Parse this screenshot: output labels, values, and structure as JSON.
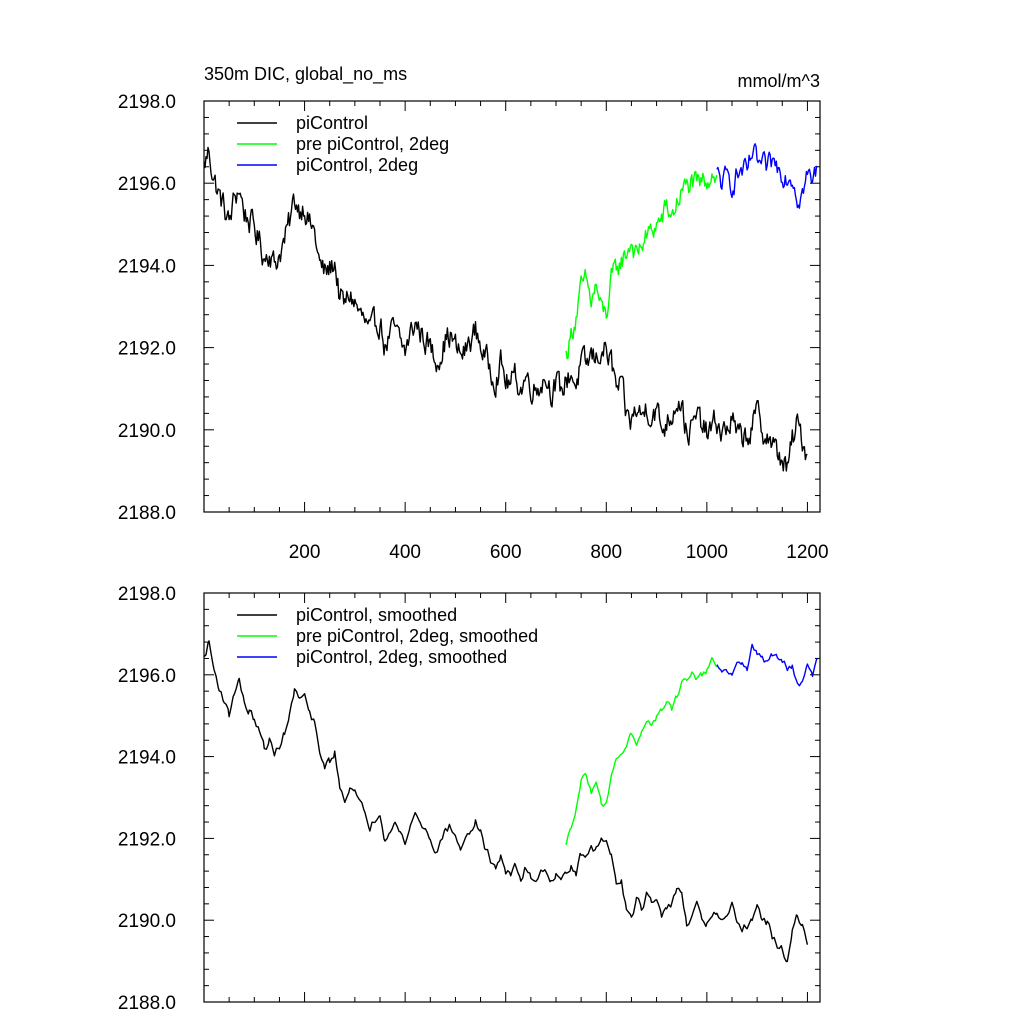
{
  "page": {
    "title_left": "350m DIC, global_no_ms",
    "title_right": "mmol/m^3"
  },
  "chart_data": [
    {
      "type": "line",
      "title": "350m DIC, global_no_ms",
      "units_label": "mmol/m^3",
      "xlim": [
        0,
        1225
      ],
      "ylim": [
        2188.0,
        2198.0
      ],
      "x_ticks": [
        200,
        400,
        600,
        800,
        1000,
        1200
      ],
      "y_ticks": [
        "2188.0",
        "2190.0",
        "2192.0",
        "2194.0",
        "2196.0",
        "2198.0"
      ],
      "legend_position": "top-left",
      "grid": false,
      "series": [
        {
          "name": "piControl",
          "color": "#000000",
          "x": [
            0,
            10,
            20,
            30,
            40,
            50,
            60,
            70,
            80,
            90,
            100,
            110,
            120,
            130,
            140,
            150,
            160,
            170,
            180,
            190,
            200,
            210,
            220,
            230,
            240,
            250,
            260,
            270,
            280,
            290,
            300,
            310,
            320,
            330,
            340,
            350,
            360,
            370,
            380,
            390,
            400,
            410,
            420,
            430,
            440,
            450,
            460,
            470,
            480,
            490,
            500,
            510,
            520,
            530,
            540,
            550,
            560,
            570,
            580,
            590,
            600,
            610,
            620,
            630,
            640,
            650,
            660,
            670,
            680,
            690,
            700,
            710,
            720,
            730,
            740,
            750,
            760,
            770,
            780,
            790,
            800,
            810,
            820,
            830,
            840,
            850,
            860,
            870,
            880,
            890,
            900,
            910,
            920,
            930,
            940,
            950,
            960,
            970,
            980,
            990,
            1000,
            1010,
            1020,
            1030,
            1040,
            1050,
            1060,
            1070,
            1080,
            1090,
            1100,
            1110,
            1120,
            1130,
            1140,
            1150,
            1160,
            1170,
            1180,
            1190,
            1200
          ],
          "values": [
            2196.4,
            2196.8,
            2196.1,
            2195.7,
            2195.4,
            2195.0,
            2195.6,
            2195.9,
            2195.3,
            2195.1,
            2194.9,
            2194.6,
            2194.2,
            2194.4,
            2194.0,
            2194.3,
            2194.6,
            2195.0,
            2195.6,
            2195.4,
            2195.5,
            2195.0,
            2194.8,
            2194.0,
            2193.8,
            2193.9,
            2194.1,
            2193.2,
            2193.0,
            2193.3,
            2193.1,
            2192.8,
            2192.6,
            2192.3,
            2192.5,
            2192.7,
            2192.0,
            2192.3,
            2192.4,
            2192.1,
            2191.9,
            2192.3,
            2192.6,
            2192.4,
            2192.2,
            2192.0,
            2191.7,
            2191.9,
            2192.2,
            2192.3,
            2192.0,
            2191.8,
            2191.9,
            2192.2,
            2192.4,
            2192.1,
            2191.7,
            2191.5,
            2191.3,
            2191.6,
            2191.2,
            2191.1,
            2191.3,
            2191.0,
            2191.3,
            2191.1,
            2191.0,
            2191.2,
            2191.3,
            2191.0,
            2191.1,
            2190.9,
            2191.2,
            2191.4,
            2191.1,
            2191.6,
            2191.5,
            2191.8,
            2191.7,
            2192.0,
            2191.9,
            2191.6,
            2191.0,
            2191.0,
            2190.3,
            2190.2,
            2190.5,
            2190.3,
            2190.6,
            2190.4,
            2190.5,
            2190.0,
            2190.2,
            2190.4,
            2190.8,
            2190.7,
            2189.9,
            2190.0,
            2190.3,
            2190.1,
            2189.9,
            2190.0,
            2190.2,
            2189.9,
            2190.0,
            2190.3,
            2189.8,
            2189.8,
            2189.9,
            2190.0,
            2190.4,
            2190.0,
            2189.9,
            2189.6,
            2189.4,
            2189.3,
            2189.0,
            2189.7,
            2190.1,
            2189.8,
            2189.4
          ],
          "noise": 0.35
        },
        {
          "name": "pre piControl, 2deg",
          "color": "#00ff00",
          "x": [
            720,
            730,
            740,
            750,
            760,
            770,
            780,
            790,
            800,
            810,
            820,
            830,
            840,
            850,
            860,
            870,
            880,
            890,
            900,
            910,
            920,
            930,
            940,
            950,
            960,
            970,
            980,
            990,
            1000,
            1010,
            1020
          ],
          "values": [
            2191.8,
            2192.3,
            2192.8,
            2193.4,
            2193.6,
            2193.1,
            2193.5,
            2192.9,
            2192.8,
            2193.6,
            2193.9,
            2194.1,
            2194.3,
            2194.6,
            2194.2,
            2194.5,
            2194.7,
            2194.8,
            2195.0,
            2195.1,
            2195.4,
            2195.2,
            2195.5,
            2195.8,
            2195.9,
            2196.0,
            2195.9,
            2196.0,
            2196.1,
            2196.3,
            2196.2
          ],
          "noise": 0.3
        },
        {
          "name": "piControl, 2deg",
          "color": "#0000ff",
          "x": [
            1020,
            1030,
            1040,
            1050,
            1060,
            1070,
            1080,
            1090,
            1100,
            1110,
            1120,
            1130,
            1140,
            1150,
            1160,
            1170,
            1180,
            1190,
            1200,
            1210,
            1220
          ],
          "values": [
            2196.2,
            2196.0,
            2196.1,
            2196.0,
            2196.2,
            2196.3,
            2196.2,
            2196.7,
            2196.5,
            2196.4,
            2196.3,
            2196.5,
            2196.4,
            2196.3,
            2196.2,
            2196.2,
            2195.7,
            2195.8,
            2196.2,
            2196.0,
            2196.4
          ],
          "noise": 0.3
        }
      ]
    },
    {
      "type": "line",
      "xlim": [
        0,
        1225
      ],
      "ylim": [
        2188.0,
        2198.0
      ],
      "x_ticks": [
        200,
        400,
        600,
        800,
        1000,
        1200
      ],
      "y_ticks": [
        "2188.0",
        "2190.0",
        "2192.0",
        "2194.0",
        "2196.0",
        "2198.0"
      ],
      "legend_position": "top-left",
      "grid": false,
      "series": [
        {
          "name": "piControl, smoothed",
          "color": "#000000",
          "ref_series": 0,
          "noise": 0.12
        },
        {
          "name": "pre piControl, 2deg, smoothed",
          "color": "#00ff00",
          "ref_series": 1,
          "noise": 0.1
        },
        {
          "name": "piControl, 2deg, smoothed",
          "color": "#0000ff",
          "ref_series": 2,
          "noise": 0.1
        }
      ]
    }
  ]
}
